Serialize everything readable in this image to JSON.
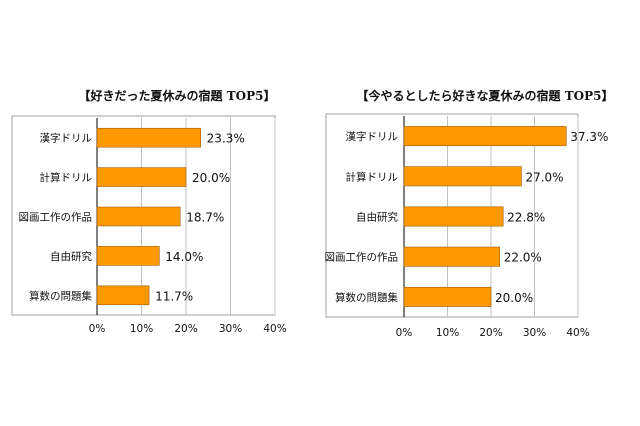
{
  "colors": {
    "bar": "#ff9900",
    "bar_edge": "#a05a00",
    "grid": "#c0c0c0",
    "frame": "#a0a0a0",
    "axis": "#000000"
  },
  "chart_data": [
    {
      "type": "bar",
      "orientation": "horizontal",
      "title": "【好きだった夏休みの宿題 TOP5】",
      "categories": [
        "漢字ドリル",
        "計算ドリル",
        "図画工作の作品",
        "自由研究",
        "算数の問題集"
      ],
      "values": [
        23.3,
        20.0,
        18.7,
        14.0,
        11.7
      ],
      "value_labels": [
        "23.3%",
        "20.0%",
        "18.7%",
        "14.0%",
        "11.7%"
      ],
      "xlim": [
        0,
        40
      ],
      "ticks": [
        0,
        10,
        20,
        30,
        40
      ],
      "tick_labels": [
        "0%",
        "10%",
        "20%",
        "30%",
        "40%"
      ],
      "grid": true,
      "xlabel": "",
      "ylabel": ""
    },
    {
      "type": "bar",
      "orientation": "horizontal",
      "title": "【今やるとしたら好きな夏休みの宿題 TOP5】",
      "categories": [
        "漢字ドリル",
        "計算ドリル",
        "自由研究",
        "図画工作の作品",
        "算数の問題集"
      ],
      "values": [
        37.3,
        27.0,
        22.8,
        22.0,
        20.0
      ],
      "value_labels": [
        "37.3%",
        "27.0%",
        "22.8%",
        "22.0%",
        "20.0%"
      ],
      "xlim": [
        0,
        40
      ],
      "ticks": [
        0,
        10,
        20,
        30,
        40
      ],
      "tick_labels": [
        "0%",
        "10%",
        "20%",
        "30%",
        "40%"
      ],
      "grid": true,
      "xlabel": "",
      "ylabel": ""
    }
  ]
}
